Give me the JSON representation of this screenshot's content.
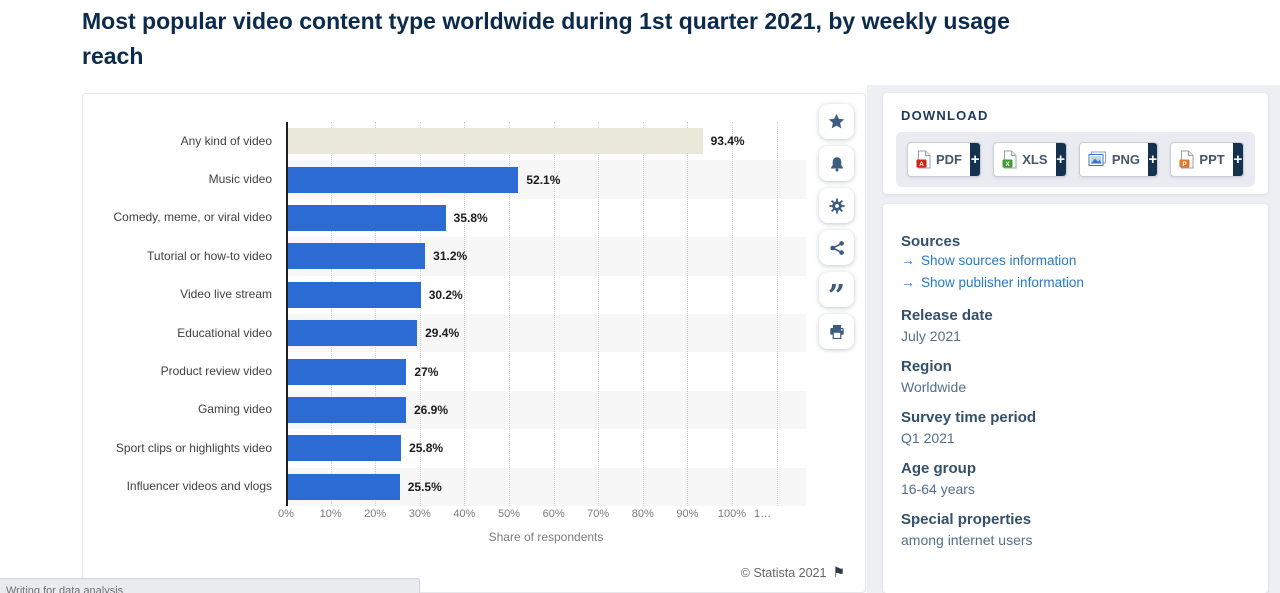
{
  "page": {
    "title_line1": "Most popular video content type worldwide during 1st quarter 2021, by weekly usage",
    "title_line2": "reach",
    "copyright": "© Statista 2021",
    "flag_icon": "⚑",
    "status_text": "Writing for data analysis"
  },
  "chart_data": {
    "type": "bar",
    "orientation": "horizontal",
    "title": "Most popular video content type worldwide during 1st quarter 2021, by weekly usage reach",
    "categories": [
      "Any kind of video",
      "Music video",
      "Comedy, meme, or viral video",
      "Tutorial or how-to video",
      "Video live stream",
      "Educational video",
      "Product review video",
      "Gaming video",
      "Sport clips or highlights video",
      "Influencer videos and vlogs"
    ],
    "values": [
      93.4,
      52.1,
      35.8,
      31.2,
      30.2,
      29.4,
      27,
      26.9,
      25.8,
      25.5
    ],
    "value_labels": [
      "93.4%",
      "52.1%",
      "35.8%",
      "31.2%",
      "30.2%",
      "29.4%",
      "27%",
      "26.9%",
      "25.8%",
      "25.5%"
    ],
    "xlabel": "Share of respondents",
    "x_ticks": [
      "0%",
      "10%",
      "20%",
      "30%",
      "40%",
      "50%",
      "60%",
      "70%",
      "80%",
      "90%",
      "100%",
      "1…"
    ],
    "xlim": [
      0,
      110
    ],
    "grid": "vertical-dotted",
    "bar_color": "#2c6bd4",
    "highlight_bar_color": "#eae8d8",
    "highlight_index": 0
  },
  "toolbar": {
    "icons": [
      {
        "name": "favorite-star-icon",
        "glyph": "star"
      },
      {
        "name": "alert-bell-icon",
        "glyph": "bell"
      },
      {
        "name": "settings-gear-icon",
        "glyph": "gear"
      },
      {
        "name": "share-icon",
        "glyph": "share"
      },
      {
        "name": "citation-quote-icon",
        "glyph": "quote"
      },
      {
        "name": "print-icon",
        "glyph": "print"
      }
    ]
  },
  "download": {
    "header": "DOWNLOAD",
    "plus": "+",
    "buttons": [
      {
        "label": "PDF",
        "icon": "pdf-file-icon"
      },
      {
        "label": "XLS",
        "icon": "xls-file-icon"
      },
      {
        "label": "PNG",
        "icon": "png-file-icon"
      },
      {
        "label": "PPT",
        "icon": "ppt-file-icon"
      }
    ]
  },
  "info": {
    "sources_heading": "Sources",
    "link_arrow": "→",
    "links": [
      "Show sources information",
      "Show publisher information"
    ],
    "fields": [
      {
        "label": "Release date",
        "value": "July 2021"
      },
      {
        "label": "Region",
        "value": "Worldwide"
      },
      {
        "label": "Survey time period",
        "value": "Q1 2021"
      },
      {
        "label": "Age group",
        "value": "16-64 years"
      },
      {
        "label": "Special properties",
        "value": "among internet users"
      }
    ]
  }
}
